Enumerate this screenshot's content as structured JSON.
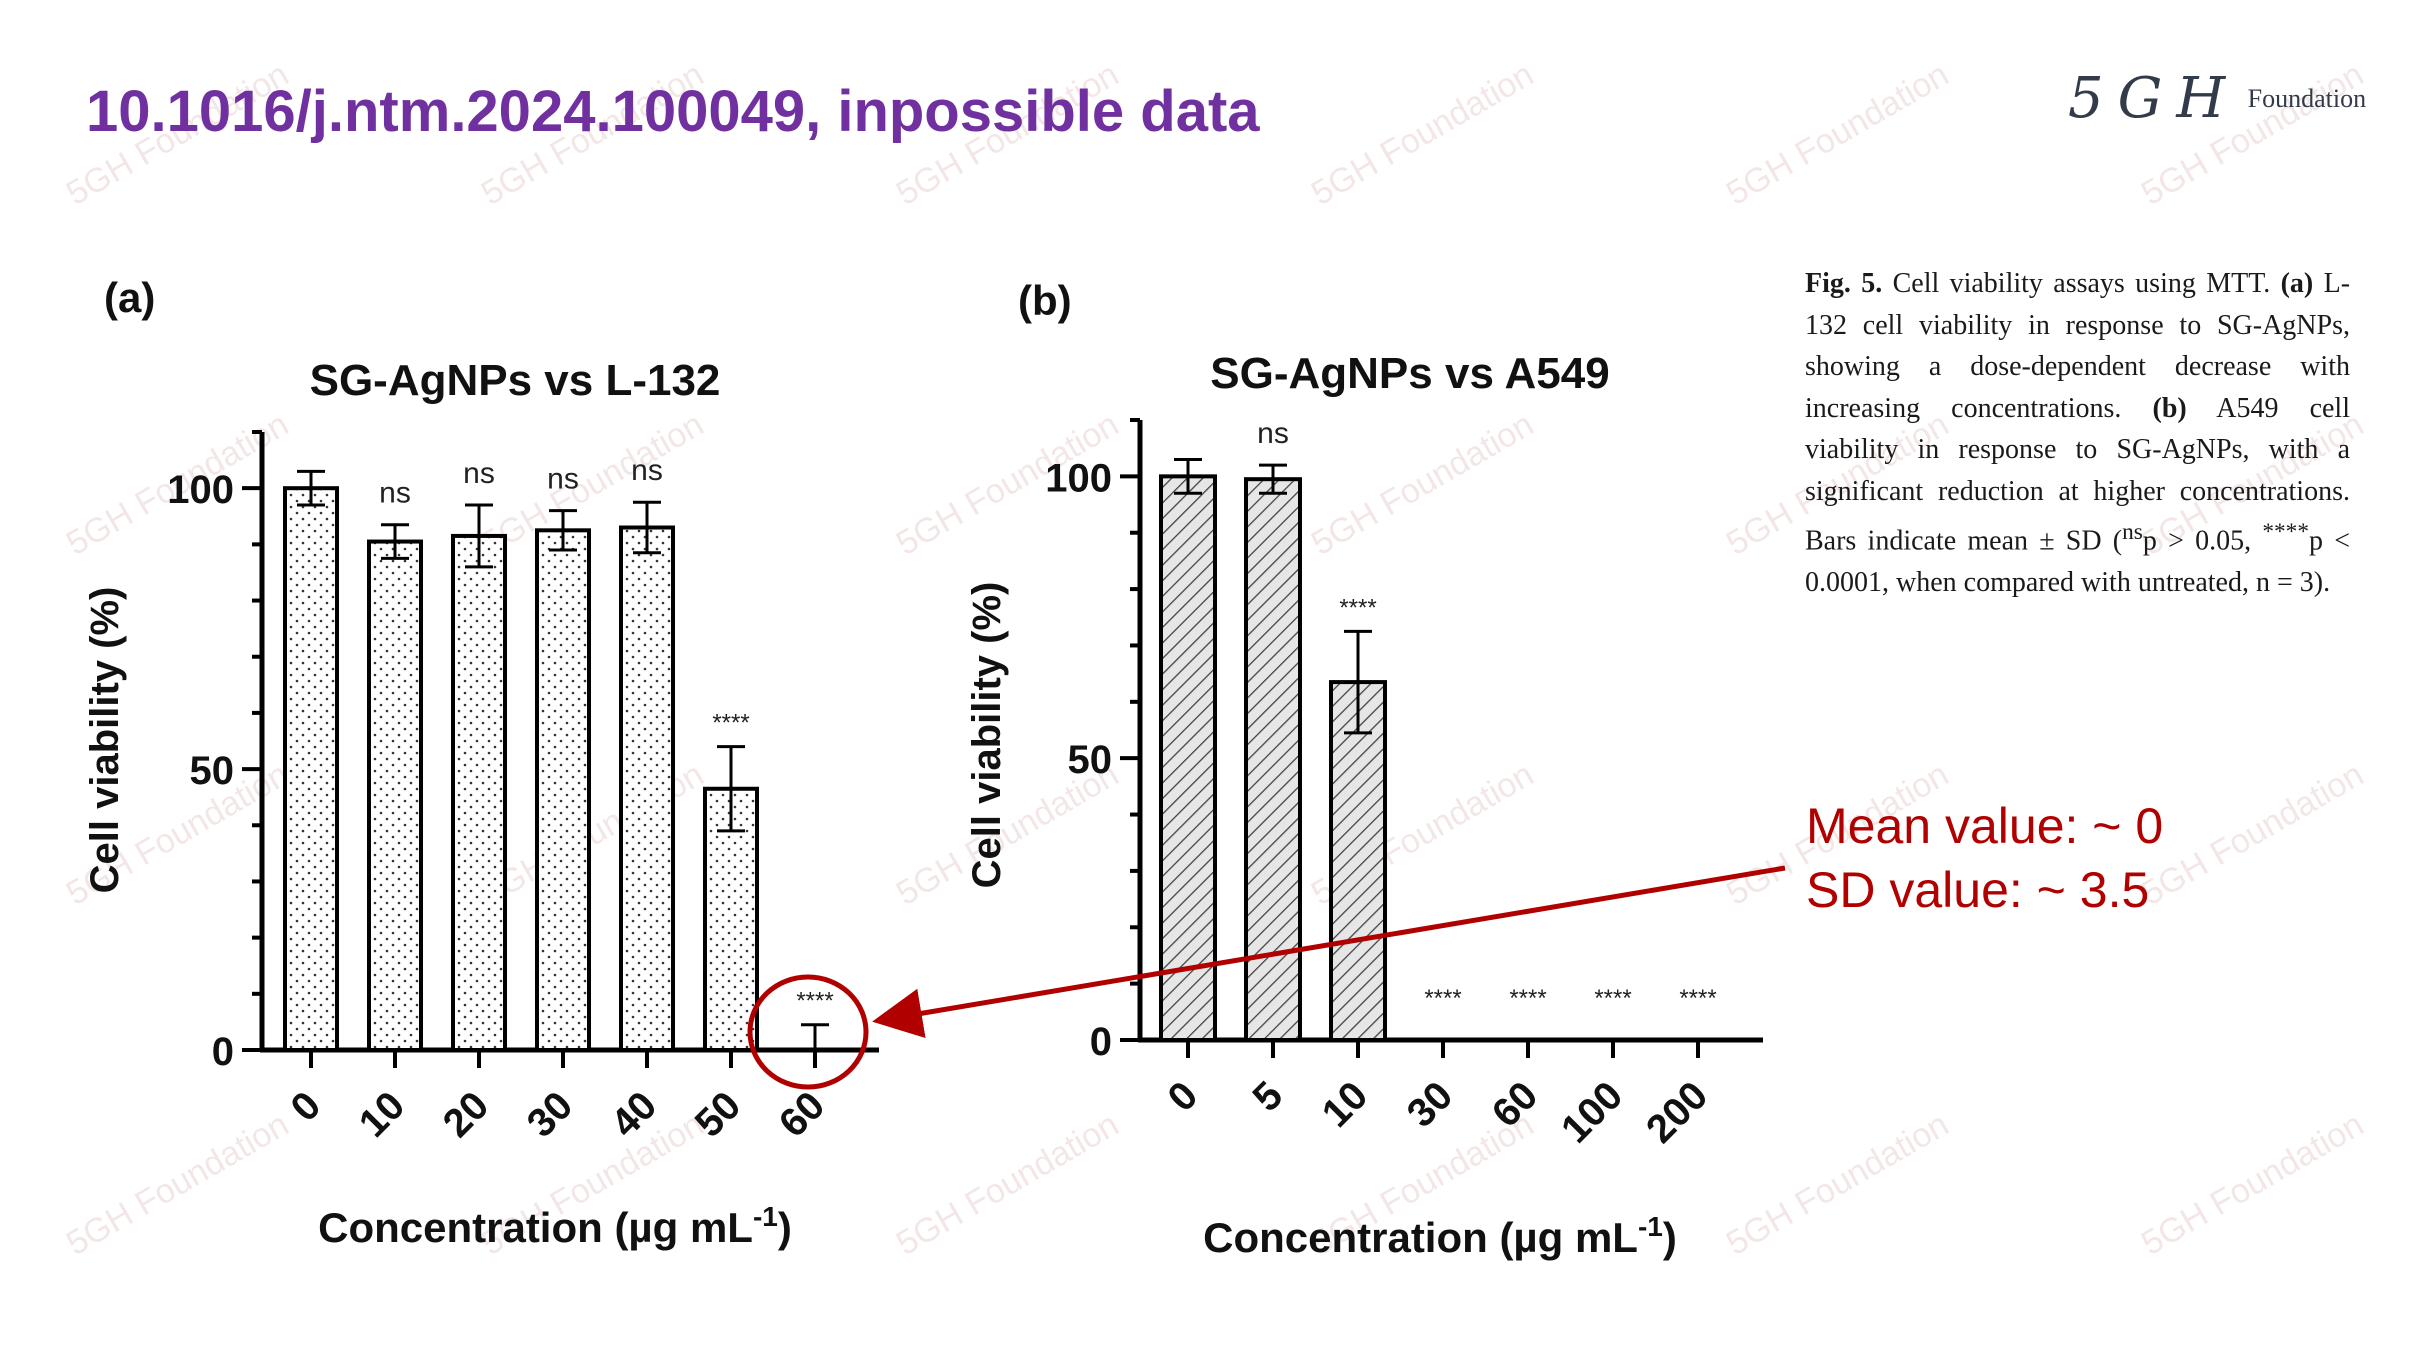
{
  "slide": {
    "title": "10.1016/j.ntm.2024.100049, inpossible data",
    "logo_mark": "5GH",
    "logo_text": "Foundation",
    "watermark_text": "5GH Foundation",
    "colors": {
      "title": "#7030A0",
      "annotation": "#B00000"
    }
  },
  "caption": {
    "fig_label": "Fig. 5.",
    "intro": "Cell viability assays using MTT.",
    "part_a_label": "(a)",
    "part_a_text": "L-132 cell viability in response to SG-AgNPs, showing a dose-dependent decrease with increasing concentrations.",
    "part_b_label": "(b)",
    "part_b_text": "A549 cell viability in response to SG-AgNPs, with a significant reduction at higher concentrations. Bars indicate mean ± SD (",
    "ns_sup": "ns",
    "ns_text": "p > 0.05, ",
    "stars_sup": "****",
    "stars_text": "p < 0.0001, when compared with untreated, n = 3)."
  },
  "annotation": {
    "mean_text": "Mean value: ~ 0",
    "sd_text": "SD value: ~ 3.5"
  },
  "chart_data": [
    {
      "panel_label": "(a)",
      "type": "bar",
      "title": "SG-AgNPs vs L-132",
      "xlabel": "Concentration (µg mL",
      "xlabel_sup": "-1",
      "xlabel_end": ")",
      "ylabel": "Cell viability (%)",
      "ylim": [
        0,
        110
      ],
      "yticks": [
        0,
        50,
        100
      ],
      "categories": [
        "0",
        "10",
        "20",
        "30",
        "40",
        "50",
        "60"
      ],
      "values": [
        100,
        90.5,
        91.5,
        92.5,
        93,
        46.5,
        0
      ],
      "errors": [
        3,
        3,
        5.5,
        3.5,
        4.5,
        7.5,
        4.5
      ],
      "significance": [
        "",
        "ns",
        "ns",
        "ns",
        "ns",
        "****",
        "****"
      ],
      "pattern": "dots",
      "grid": false
    },
    {
      "panel_label": "(b)",
      "type": "bar",
      "title": "SG-AgNPs vs A549",
      "xlabel": "Concentration (µg mL",
      "xlabel_sup": "-1",
      "xlabel_end": ")",
      "ylabel": "Cell viability (%)",
      "ylim": [
        0,
        110
      ],
      "yticks": [
        0,
        50,
        100
      ],
      "categories": [
        "0",
        "5",
        "10",
        "30",
        "60",
        "100",
        "200"
      ],
      "values": [
        100,
        99.5,
        63.5,
        0,
        0,
        0,
        0
      ],
      "errors": [
        3,
        2.5,
        9,
        0,
        0,
        0,
        0
      ],
      "significance": [
        "",
        "ns",
        "****",
        "****",
        "****",
        "****",
        "****"
      ],
      "pattern": "hatch",
      "grid": false
    }
  ]
}
